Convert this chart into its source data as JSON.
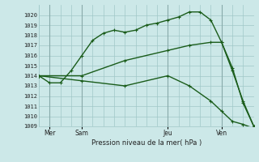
{
  "bg_color": "#cce8e8",
  "grid_color": "#a0c8c8",
  "line_color": "#1a5c1a",
  "title": "Pression niveau de la mer( hPa )",
  "ylim": [
    1009,
    1021
  ],
  "yticks": [
    1009,
    1010,
    1011,
    1012,
    1013,
    1014,
    1015,
    1016,
    1017,
    1018,
    1019,
    1020
  ],
  "xlim": [
    0,
    20
  ],
  "xtick_labels": [
    "Mer",
    "Sam",
    "Jeu",
    "Ven"
  ],
  "xtick_positions": [
    1,
    4,
    12,
    17
  ],
  "vline_positions": [
    1,
    4,
    12,
    17
  ],
  "line1_x": [
    0,
    1,
    2,
    3,
    4,
    5,
    6,
    7,
    8,
    9,
    10,
    11,
    12,
    13,
    14,
    15,
    16,
    17,
    18,
    19,
    20
  ],
  "line1_y": [
    1014.0,
    1013.3,
    1013.3,
    1014.5,
    1016.0,
    1017.5,
    1018.2,
    1018.5,
    1018.3,
    1018.5,
    1019.0,
    1019.2,
    1019.5,
    1019.8,
    1020.3,
    1020.3,
    1019.5,
    1017.3,
    1014.8,
    1011.3,
    1009.0
  ],
  "line2_x": [
    0,
    4,
    8,
    12,
    14,
    16,
    17,
    18,
    19,
    20
  ],
  "line2_y": [
    1014.0,
    1014.0,
    1015.5,
    1016.5,
    1017.0,
    1017.3,
    1017.3,
    1014.5,
    1011.5,
    1009.0
  ],
  "line3_x": [
    0,
    4,
    8,
    12,
    14,
    16,
    17,
    18,
    19,
    20
  ],
  "line3_y": [
    1014.0,
    1013.5,
    1013.0,
    1014.0,
    1013.0,
    1011.5,
    1010.5,
    1009.5,
    1009.2,
    1008.8
  ]
}
